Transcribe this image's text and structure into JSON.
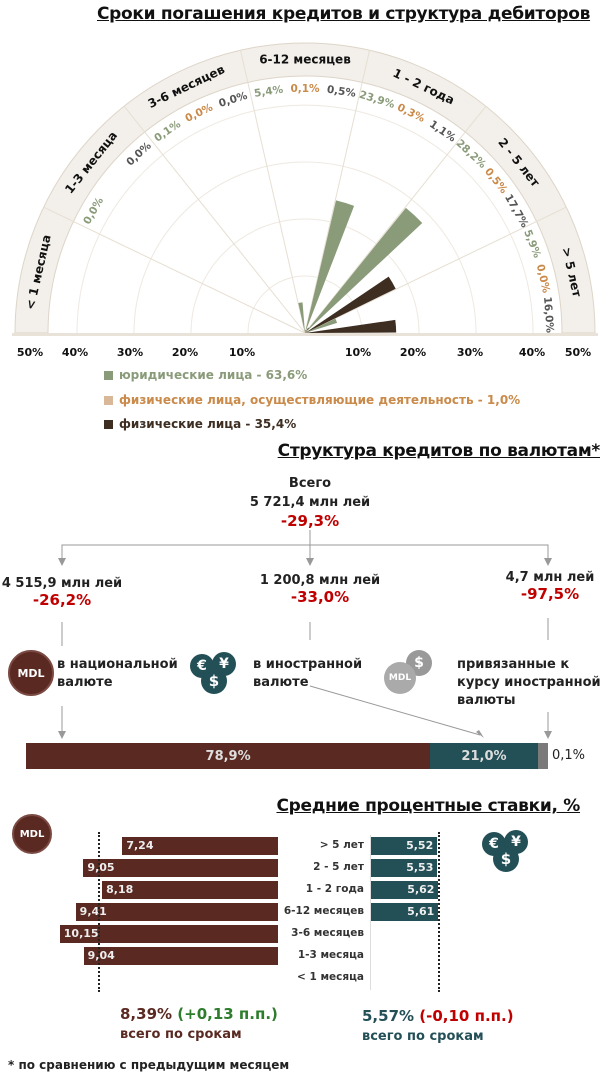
{
  "colors": {
    "legal": "#8a9b7a",
    "entrepreneurs": "#c98a4a",
    "individuals": "#3e2e22",
    "mdl": "#5a2a22",
    "foreign": "#234f57",
    "pegged": "#7a7a7a",
    "up": "#2e7d2e",
    "down": "#c00000"
  },
  "chart_data": [
    {
      "type": "polar-bar",
      "title": "Сроки погашения кредитов и структура дебиторов",
      "categories": [
        "< 1 месяца",
        "1-3 месяца",
        "3-6 месяцев",
        "6-12 месяцев",
        "1 - 2 года",
        "2 - 5 лет",
        "> 5 лет"
      ],
      "series": [
        {
          "name": "юридические лица - 63,6%",
          "key": "legal",
          "values": [
            null,
            0.0,
            0.1,
            5.4,
            23.9,
            28.2,
            5.9
          ],
          "labels": [
            "",
            "0,0%",
            "0,1%",
            "5,4%",
            "23,9%",
            "28,2%",
            "5,9%"
          ]
        },
        {
          "name": "физические лица, осуществляющие деятельность - 1,0%",
          "key": "entrepreneurs",
          "values": [
            null,
            null,
            0.0,
            0.1,
            0.3,
            0.5,
            0.0
          ],
          "labels": [
            "",
            "",
            "0,0%",
            "0,1%",
            "0,3%",
            "0,5%",
            "0,0%"
          ]
        },
        {
          "name": "физические лица - 35,4%",
          "key": "individuals",
          "values": [
            null,
            0.0,
            0.0,
            0.5,
            1.1,
            17.7,
            16.0
          ],
          "labels": [
            "",
            "0,0%",
            "0,0%",
            "0,5%",
            "1,1%",
            "17,7%",
            "16,0%"
          ]
        }
      ],
      "axis_ticks": [
        "50%",
        "40%",
        "30%",
        "20%",
        "10%",
        "10%",
        "20%",
        "30%",
        "40%",
        "50%"
      ],
      "rlim": [
        0,
        50
      ]
    },
    {
      "type": "stacked-bar",
      "title": "Структура кредитов по валютам*",
      "values": [
        78.9,
        21.0,
        0.1
      ],
      "labels": [
        "78,9%",
        "21,0%",
        "0,1%"
      ]
    },
    {
      "type": "bar",
      "title": "Средние процентные ставки, %",
      "categories": [
        "> 5 лет",
        "2 - 5 лет",
        "1 - 2 года",
        "6-12 месяцев",
        "3-6 месяцев",
        "1-3 месяца",
        "< 1 месяца"
      ],
      "series": [
        {
          "name": "MDL",
          "values": [
            7.24,
            9.05,
            8.18,
            9.41,
            10.15,
            9.04,
            null
          ],
          "labels": [
            "7,24",
            "9,05",
            "8,18",
            "9,41",
            "10,15",
            "9,04",
            ""
          ],
          "average": 8.39
        },
        {
          "name": "foreign",
          "values": [
            5.52,
            5.53,
            5.62,
            5.61,
            null,
            null,
            null
          ],
          "labels": [
            "5,52",
            "5,53",
            "5,62",
            "5,61",
            "",
            "",
            ""
          ],
          "average": 5.57
        }
      ]
    }
  ],
  "currency": {
    "total_label": "Всего",
    "total_value": "5 721,4 млн лей",
    "total_change": "-29,3%",
    "mdl_value": "4 515,9 млн лей",
    "mdl_change": "-26,2%",
    "mdl_label": "в национальной валюте",
    "fx_value": "1 200,8 млн лей",
    "fx_change": "-33,0%",
    "fx_label": "в  иностранной валюте",
    "peg_value": "4,7 млн лей",
    "peg_change": "-97,5%",
    "peg_label": "привязанные к курсу иностранной валюты",
    "mdl_icon": "MDL"
  },
  "rates": {
    "mdl_total": "8,39%",
    "mdl_delta": "(+0,13 п.п.)",
    "mdl_caption": "всего по срокам",
    "fx_total": "5,57%",
    "fx_delta": "(-0,10 п.п.)",
    "fx_caption": "всего по срокам"
  },
  "footnote": "* по сравнению с предыдущим месяцем"
}
